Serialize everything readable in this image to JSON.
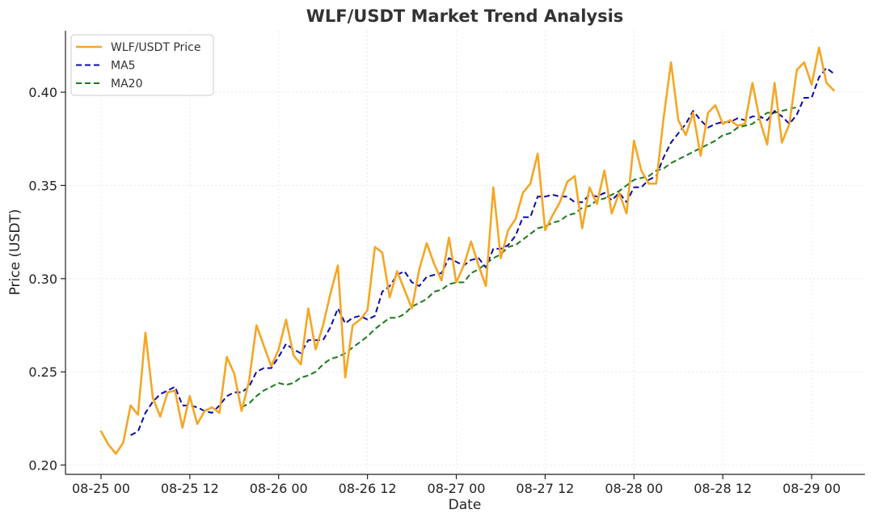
{
  "chart_data": {
    "type": "line",
    "title": "WLF/USDT Market Trend Analysis",
    "xlabel": "Date",
    "ylabel": "Price (USDT)",
    "x_tick_labels": [
      "08-25 00",
      "08-25 12",
      "08-26 00",
      "08-26 12",
      "08-27 00",
      "08-27 12",
      "08-28 00",
      "08-28 12",
      "08-29 00"
    ],
    "x_tick_hours": [
      0,
      12,
      24,
      36,
      48,
      60,
      72,
      84,
      96
    ],
    "xlim_hours": [
      -4.8,
      103.2
    ],
    "y_ticks": [
      0.2,
      0.25,
      0.3,
      0.35,
      0.4
    ],
    "y_tick_labels": [
      "0.20",
      "0.25",
      "0.30",
      "0.35",
      "0.40"
    ],
    "ylim": [
      0.195,
      0.433
    ],
    "grid": true,
    "legend_position": "top-left",
    "x_step_hours": 1,
    "series": [
      {
        "name": "WLF/USDT Price",
        "color": "#F5A623",
        "style": "solid",
        "start_hour": 0,
        "values": [
          0.218,
          0.211,
          0.206,
          0.212,
          0.232,
          0.227,
          0.271,
          0.236,
          0.226,
          0.239,
          0.24,
          0.22,
          0.237,
          0.222,
          0.229,
          0.231,
          0.228,
          0.258,
          0.249,
          0.229,
          0.245,
          0.275,
          0.264,
          0.253,
          0.262,
          0.278,
          0.259,
          0.254,
          0.284,
          0.262,
          0.275,
          0.292,
          0.307,
          0.247,
          0.275,
          0.278,
          0.283,
          0.317,
          0.314,
          0.29,
          0.304,
          0.294,
          0.284,
          0.305,
          0.319,
          0.308,
          0.299,
          0.322,
          0.298,
          0.307,
          0.32,
          0.307,
          0.296,
          0.349,
          0.311,
          0.326,
          0.332,
          0.346,
          0.351,
          0.367,
          0.326,
          0.334,
          0.341,
          0.352,
          0.355,
          0.327,
          0.349,
          0.34,
          0.358,
          0.335,
          0.346,
          0.335,
          0.374,
          0.358,
          0.351,
          0.351,
          0.386,
          0.416,
          0.385,
          0.377,
          0.389,
          0.366,
          0.389,
          0.393,
          0.383,
          0.385,
          0.382,
          0.383,
          0.405,
          0.385,
          0.372,
          0.405,
          0.373,
          0.383,
          0.412,
          0.416,
          0.404,
          0.424,
          0.405,
          0.401
        ]
      },
      {
        "name": "MA5",
        "color": "#0A0AAA",
        "style": "dashed",
        "start_hour": 4,
        "values": [
          0.216,
          0.218,
          0.228,
          0.234,
          0.238,
          0.24,
          0.242,
          0.232,
          0.232,
          0.231,
          0.229,
          0.228,
          0.232,
          0.237,
          0.239,
          0.239,
          0.242,
          0.25,
          0.252,
          0.252,
          0.258,
          0.265,
          0.262,
          0.26,
          0.267,
          0.267,
          0.267,
          0.274,
          0.284,
          0.276,
          0.279,
          0.28,
          0.278,
          0.28,
          0.293,
          0.296,
          0.302,
          0.304,
          0.298,
          0.296,
          0.301,
          0.302,
          0.303,
          0.311,
          0.309,
          0.307,
          0.31,
          0.311,
          0.306,
          0.316,
          0.316,
          0.318,
          0.323,
          0.333,
          0.333,
          0.344,
          0.344,
          0.345,
          0.344,
          0.344,
          0.341,
          0.341,
          0.345,
          0.344,
          0.346,
          0.342,
          0.346,
          0.341,
          0.349,
          0.349,
          0.353,
          0.355,
          0.365,
          0.373,
          0.378,
          0.383,
          0.39,
          0.385,
          0.381,
          0.383,
          0.384,
          0.384,
          0.386,
          0.385,
          0.387,
          0.387,
          0.385,
          0.39,
          0.387,
          0.383,
          0.388,
          0.397,
          0.397,
          0.408,
          0.413,
          0.41
        ]
      },
      {
        "name": "MA20",
        "color": "#1A7A1A",
        "style": "dashed",
        "start_hour": 19,
        "values": [
          0.231,
          0.233,
          0.237,
          0.24,
          0.242,
          0.244,
          0.243,
          0.244,
          0.247,
          0.248,
          0.25,
          0.254,
          0.257,
          0.258,
          0.26,
          0.263,
          0.266,
          0.269,
          0.273,
          0.276,
          0.279,
          0.279,
          0.281,
          0.285,
          0.287,
          0.289,
          0.293,
          0.294,
          0.297,
          0.298,
          0.298,
          0.303,
          0.305,
          0.308,
          0.311,
          0.313,
          0.317,
          0.318,
          0.321,
          0.324,
          0.327,
          0.328,
          0.33,
          0.331,
          0.334,
          0.335,
          0.338,
          0.339,
          0.342,
          0.343,
          0.345,
          0.347,
          0.35,
          0.353,
          0.354,
          0.355,
          0.358,
          0.359,
          0.362,
          0.364,
          0.366,
          0.368,
          0.37,
          0.372,
          0.374,
          0.377,
          0.378,
          0.381,
          0.382,
          0.383,
          0.386,
          0.389,
          0.389,
          0.39,
          0.391,
          0.392
        ]
      }
    ]
  }
}
